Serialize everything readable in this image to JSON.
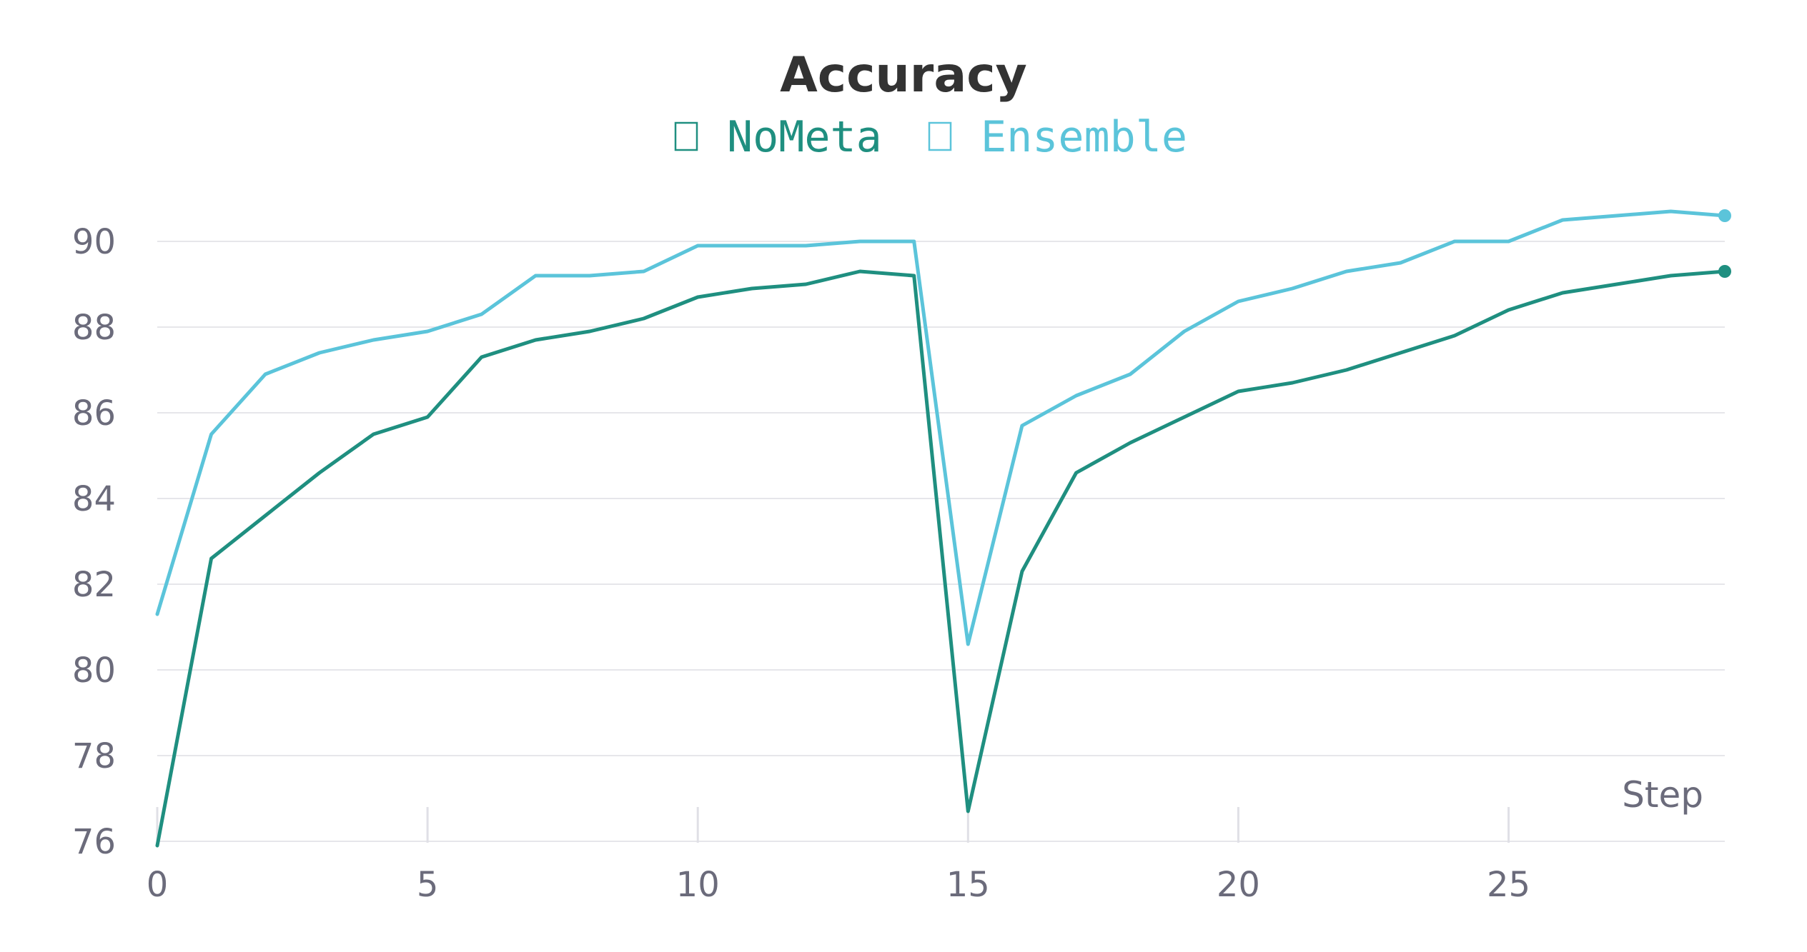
{
  "chart_data": {
    "type": "line",
    "title": "Accuracy",
    "xlabel": "Step",
    "ylabel": "",
    "xlim": [
      0,
      29
    ],
    "ylim": [
      75.8,
      91.8
    ],
    "x_ticks": [
      0,
      5,
      10,
      15,
      20,
      25
    ],
    "y_ticks": [
      76,
      78,
      80,
      82,
      84,
      86,
      88,
      90
    ],
    "grid": "horizontal",
    "legend_position": "top-center",
    "x": [
      0,
      1,
      2,
      3,
      4,
      5,
      6,
      7,
      8,
      9,
      10,
      11,
      12,
      13,
      14,
      15,
      16,
      17,
      18,
      19,
      20,
      21,
      22,
      23,
      24,
      25,
      26,
      27,
      28,
      29
    ],
    "series": [
      {
        "name": "NoMeta",
        "color": "#1f8f80",
        "legend_marker": "empty-square",
        "values": [
          75.9,
          82.6,
          83.6,
          84.6,
          85.5,
          85.9,
          87.3,
          87.7,
          87.9,
          88.2,
          88.7,
          88.9,
          89.0,
          89.3,
          89.2,
          76.7,
          82.3,
          84.6,
          85.3,
          85.9,
          86.5,
          86.7,
          87.0,
          87.4,
          87.8,
          88.4,
          88.8,
          89.0,
          89.2,
          89.3
        ]
      },
      {
        "name": "Ensemble",
        "color": "#5bc4da",
        "legend_marker": "empty-square",
        "values": [
          81.3,
          85.5,
          86.9,
          87.4,
          87.7,
          87.9,
          88.3,
          89.2,
          89.2,
          89.3,
          89.9,
          89.9,
          89.9,
          90.0,
          90.0,
          80.6,
          85.7,
          86.4,
          86.9,
          87.9,
          88.6,
          88.9,
          89.3,
          89.5,
          90.0,
          90.0,
          90.5,
          90.6,
          90.7,
          90.6
        ]
      }
    ]
  }
}
